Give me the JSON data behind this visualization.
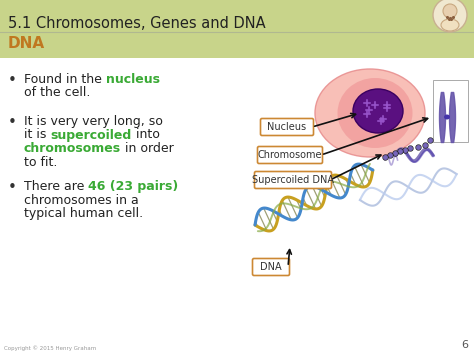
{
  "title": "5.1 Chromosomes, Genes and DNA",
  "subtitle": "DNA",
  "bg_color": "#f5f5f0",
  "header_bg": "#c8d48a",
  "header_line_color": "#b0b890",
  "title_color": "#222222",
  "subtitle_color": "#c07820",
  "content_bg": "#ffffff",
  "bullet_color": "#222222",
  "highlight_green": "#3aaa35",
  "highlight_green2": "#3aaa35",
  "label_bg": "#ffffff",
  "label_edge": "#cc8833",
  "label_text": "#333333",
  "arrow_color": "#111111",
  "page_num": "6",
  "copyright": "Copyright © 2015 Henry Graham",
  "cell_outer": "#f4a0a0",
  "cell_inner": "#5a1080",
  "chrom_color": "#6655aa",
  "helix1": "#c8a020",
  "helix2": "#4488cc",
  "helix3": "#88aa44",
  "helix_rung": "#888855"
}
